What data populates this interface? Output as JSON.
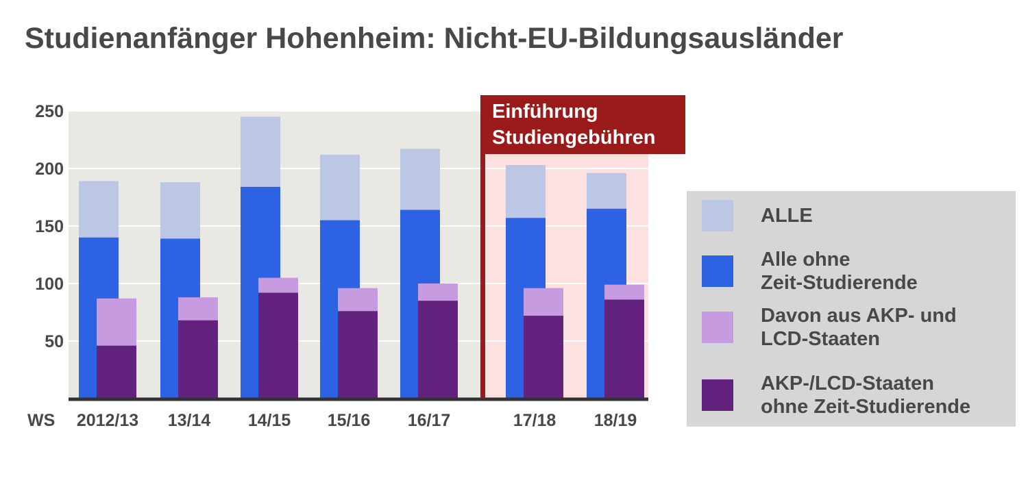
{
  "title": "Studienanfänger Hohenheim: Nicht-EU-Bildungsausländer",
  "chart_data": {
    "type": "bar",
    "title": "Studienanfänger Hohenheim: Nicht-EU-Bildungsausländer",
    "xlabel_prefix": "WS",
    "categories": [
      "2012/13",
      "13/14",
      "14/15",
      "15/16",
      "16/17",
      "17/18",
      "18/19"
    ],
    "ylim": [
      0,
      250
    ],
    "yticks": [
      50,
      100,
      150,
      200,
      250
    ],
    "series": [
      {
        "name": "ALLE",
        "color": "#bcc7e6",
        "values": [
          189,
          188,
          245,
          212,
          217,
          203,
          196
        ]
      },
      {
        "name": "Alle ohne Zeit-Studierende",
        "color": "#2d63e3",
        "values": [
          140,
          139,
          184,
          155,
          164,
          157,
          165
        ]
      },
      {
        "name": "Davon aus AKP- und LCD-Staaten",
        "color": "#c69bdf",
        "values": [
          87,
          88,
          105,
          96,
          100,
          96,
          99
        ]
      },
      {
        "name": "AKP-/LCD-Staaten ohne Zeit-Studierende",
        "color": "#62227e",
        "values": [
          46,
          68,
          92,
          76,
          85,
          72,
          86
        ]
      }
    ],
    "annotation": {
      "text_lines": [
        "Einführung",
        "Studiengebühren"
      ],
      "position_between": [
        "16/17",
        "17/18"
      ],
      "line_color": "#9b1b1b",
      "highlight_color": "#fde0e0"
    },
    "plot_background": "#e9e8e3",
    "grid": true,
    "legend_position": "right"
  },
  "legend": {
    "items": [
      {
        "label": "ALLE",
        "color": "#bcc7e6"
      },
      {
        "label": "Alle ohne\nZeit-Studierende",
        "color": "#2d63e3"
      },
      {
        "label": "Davon aus AKP- und\nLCD-Staaten",
        "color": "#c69bdf"
      },
      {
        "label": "AKP-/LCD-Staaten\nohne Zeit-Studierende",
        "color": "#62227e"
      }
    ]
  }
}
